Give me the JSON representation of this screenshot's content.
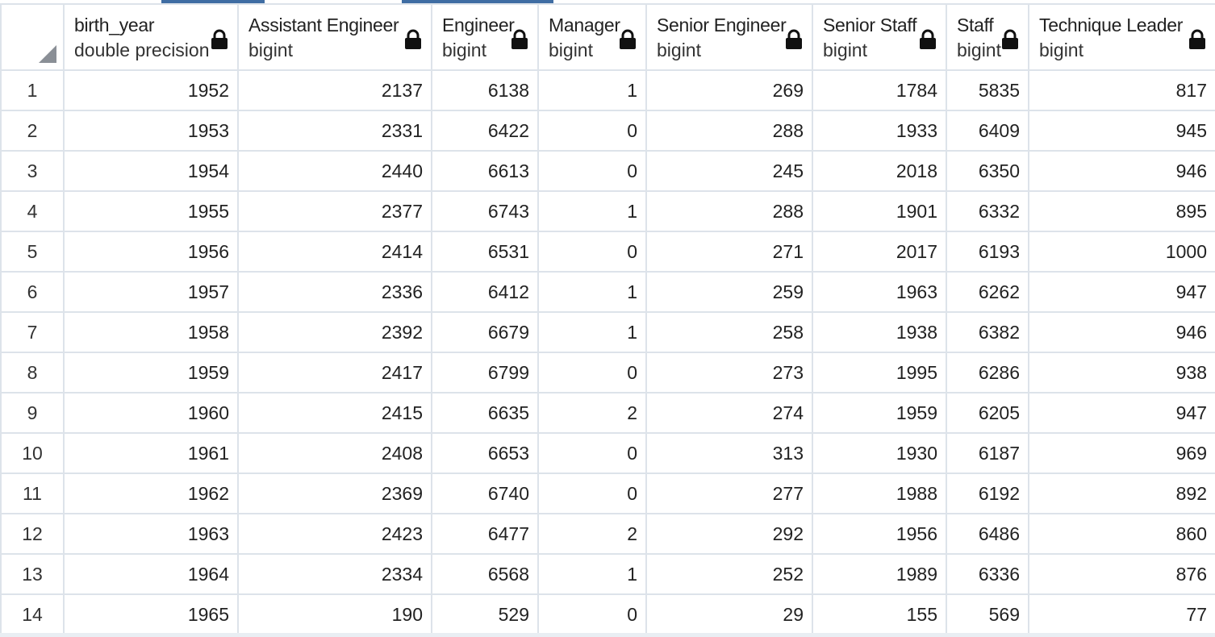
{
  "columns": [
    {
      "name": "birth_year",
      "type": "double precision"
    },
    {
      "name": "Assistant Engineer",
      "type": "bigint"
    },
    {
      "name": "Engineer",
      "type": "bigint"
    },
    {
      "name": "Manager",
      "type": "bigint"
    },
    {
      "name": "Senior Engineer",
      "type": "bigint"
    },
    {
      "name": "Senior Staff",
      "type": "bigint"
    },
    {
      "name": "Staff",
      "type": "bigint"
    },
    {
      "name": "Technique Leader",
      "type": "bigint"
    }
  ],
  "rows": [
    {
      "n": "1",
      "cells": [
        "1952",
        "2137",
        "6138",
        "1",
        "269",
        "1784",
        "5835",
        "817"
      ]
    },
    {
      "n": "2",
      "cells": [
        "1953",
        "2331",
        "6422",
        "0",
        "288",
        "1933",
        "6409",
        "945"
      ]
    },
    {
      "n": "3",
      "cells": [
        "1954",
        "2440",
        "6613",
        "0",
        "245",
        "2018",
        "6350",
        "946"
      ]
    },
    {
      "n": "4",
      "cells": [
        "1955",
        "2377",
        "6743",
        "1",
        "288",
        "1901",
        "6332",
        "895"
      ]
    },
    {
      "n": "5",
      "cells": [
        "1956",
        "2414",
        "6531",
        "0",
        "271",
        "2017",
        "6193",
        "1000"
      ]
    },
    {
      "n": "6",
      "cells": [
        "1957",
        "2336",
        "6412",
        "1",
        "259",
        "1963",
        "6262",
        "947"
      ]
    },
    {
      "n": "7",
      "cells": [
        "1958",
        "2392",
        "6679",
        "1",
        "258",
        "1938",
        "6382",
        "946"
      ]
    },
    {
      "n": "8",
      "cells": [
        "1959",
        "2417",
        "6799",
        "0",
        "273",
        "1995",
        "6286",
        "938"
      ]
    },
    {
      "n": "9",
      "cells": [
        "1960",
        "2415",
        "6635",
        "2",
        "274",
        "1959",
        "6205",
        "947"
      ]
    },
    {
      "n": "10",
      "cells": [
        "1961",
        "2408",
        "6653",
        "0",
        "313",
        "1930",
        "6187",
        "969"
      ]
    },
    {
      "n": "11",
      "cells": [
        "1962",
        "2369",
        "6740",
        "0",
        "277",
        "1988",
        "6192",
        "892"
      ]
    },
    {
      "n": "12",
      "cells": [
        "1963",
        "2423",
        "6477",
        "2",
        "292",
        "1956",
        "6486",
        "860"
      ]
    },
    {
      "n": "13",
      "cells": [
        "1964",
        "2334",
        "6568",
        "1",
        "252",
        "1989",
        "6336",
        "876"
      ]
    },
    {
      "n": "14",
      "cells": [
        "1965",
        "190",
        "529",
        "0",
        "29",
        "155",
        "569",
        "77"
      ]
    }
  ],
  "icons": {
    "column_lock": "lock-icon",
    "select_all": "select-all-corner-icon"
  },
  "colors": {
    "grid_border": "#dde3ea",
    "tab_accent": "#3f6da3"
  }
}
